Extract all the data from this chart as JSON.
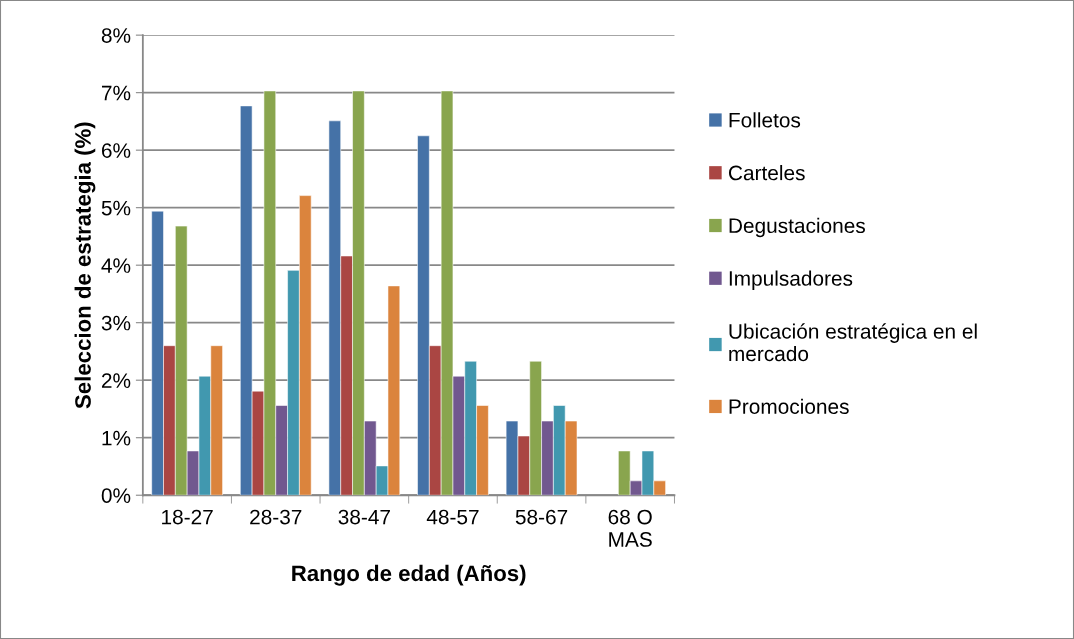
{
  "chart_data": {
    "type": "bar",
    "xlabel": "Rango de edad (Años)",
    "ylabel": "Seleccion de estrategia (%)",
    "categories": [
      "18-27",
      "28-37",
      "38-47",
      "48-57",
      "58-67",
      "68 O\nMAS"
    ],
    "series": [
      {
        "name": "Folletos",
        "color": "#4572a7",
        "values": [
          4.94,
          6.77,
          6.51,
          6.25,
          1.29,
          null
        ]
      },
      {
        "name": "Carteles",
        "color": "#aa4643",
        "values": [
          2.6,
          1.81,
          4.16,
          2.6,
          1.03,
          null
        ]
      },
      {
        "name": "Degustaciones",
        "color": "#89a54e",
        "values": [
          4.68,
          7.03,
          7.03,
          7.03,
          2.33,
          0.77
        ]
      },
      {
        "name": "Impulsadores",
        "color": "#71588f",
        "values": [
          0.77,
          1.56,
          1.29,
          2.07,
          1.29,
          0.25
        ]
      },
      {
        "name": "Ubicación estratégica en el\nmercado",
        "color": "#4198af",
        "values": [
          2.07,
          3.91,
          0.51,
          2.33,
          1.56,
          0.77
        ]
      },
      {
        "name": "Promociones",
        "color": "#db843d",
        "values": [
          2.6,
          5.21,
          3.64,
          1.56,
          1.29,
          0.25
        ]
      }
    ],
    "ylim": [
      0,
      8
    ],
    "yticks": [
      {
        "value": 0,
        "label": "0%"
      },
      {
        "value": 1,
        "label": "1%"
      },
      {
        "value": 2,
        "label": "2%"
      },
      {
        "value": 3,
        "label": "3%"
      },
      {
        "value": 4,
        "label": "4%"
      },
      {
        "value": 5,
        "label": "5%"
      },
      {
        "value": 6,
        "label": "6%"
      },
      {
        "value": 7,
        "label": "7%"
      },
      {
        "value": 8,
        "label": "8%"
      }
    ],
    "grid": "y",
    "legend": "right"
  }
}
